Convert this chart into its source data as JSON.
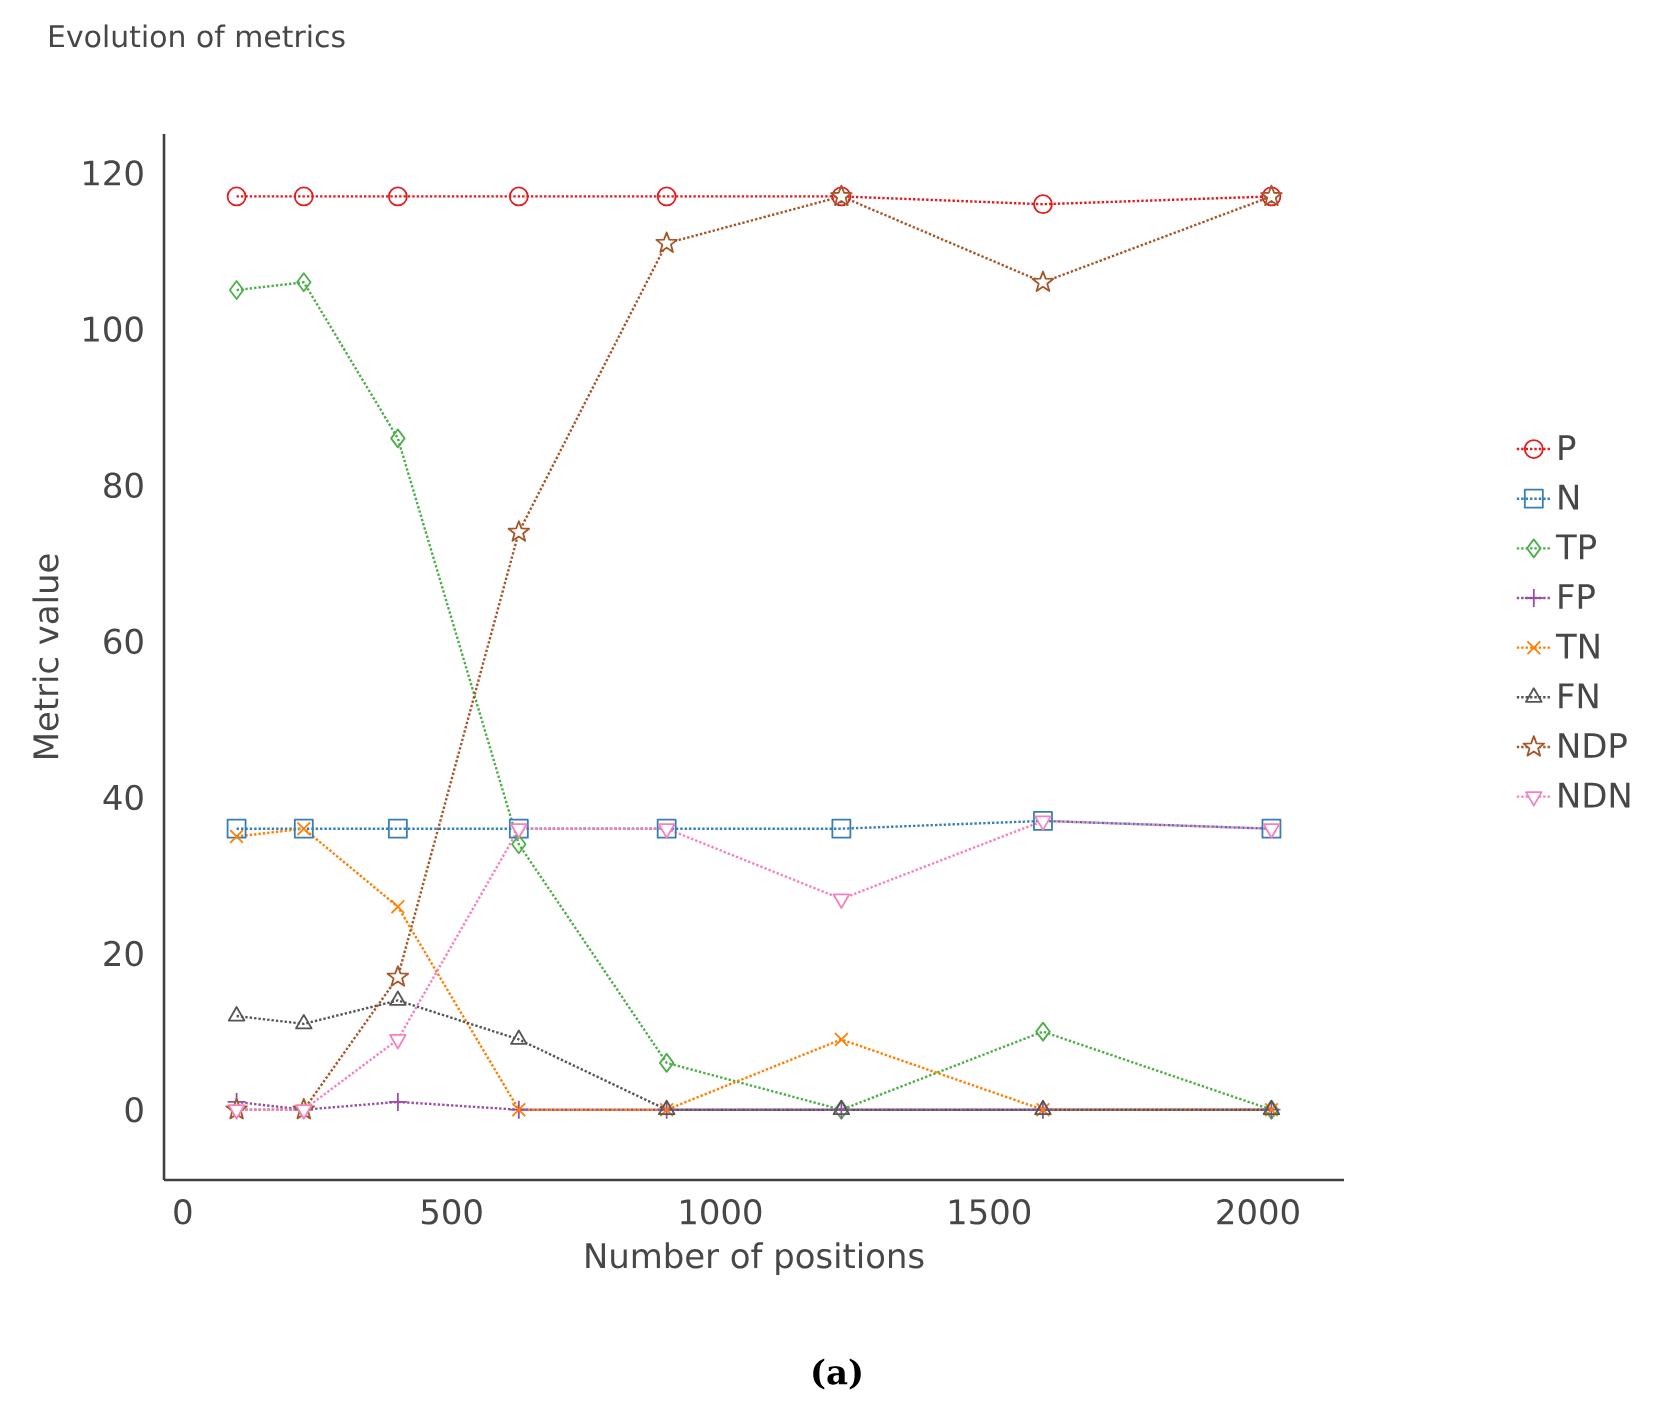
{
  "chart_data": {
    "type": "line",
    "title": "Evolution of metrics",
    "xlabel": "Number of positions",
    "ylabel": "Metric value",
    "annotations": [
      "**(a)**"
    ],
    "x": [
      100,
      225,
      400,
      625,
      900,
      1225,
      1600,
      2025
    ],
    "xlim": [
      -35,
      2160
    ],
    "xticks": [
      0,
      500,
      1000,
      1500,
      2000
    ],
    "ylim": [
      -9,
      125
    ],
    "yticks": [
      0,
      20,
      40,
      60,
      80,
      100,
      120
    ],
    "grid": false,
    "legend": "right",
    "line_style": "dotted",
    "series": [
      {
        "name": "P",
        "color": "#e41a1c",
        "marker": "circle",
        "values": [
          117,
          117,
          117,
          117,
          117,
          117,
          116,
          117
        ]
      },
      {
        "name": "N",
        "color": "#377eb8",
        "marker": "square",
        "values": [
          36,
          36,
          36,
          36,
          36,
          36,
          37,
          36
        ]
      },
      {
        "name": "TP",
        "color": "#4daf4a",
        "marker": "diamond",
        "values": [
          105,
          106,
          86,
          34,
          6,
          0,
          10,
          0
        ]
      },
      {
        "name": "FP",
        "color": "#984ea3",
        "marker": "plus",
        "values": [
          1,
          0,
          1,
          0,
          0,
          0,
          0,
          0
        ]
      },
      {
        "name": "TN",
        "color": "#ff7f00",
        "marker": "cross",
        "values": [
          35,
          36,
          26,
          0,
          0,
          9,
          0,
          0
        ]
      },
      {
        "name": "FN",
        "color": "#555555",
        "marker": "triangle",
        "values": [
          12,
          11,
          14,
          9,
          0,
          0,
          0,
          0
        ]
      },
      {
        "name": "NDP",
        "color": "#a65628",
        "marker": "star",
        "values": [
          0,
          0,
          17,
          74,
          111,
          117,
          106,
          117
        ]
      },
      {
        "name": "NDN",
        "color": "#f781bf",
        "marker": "triangle-down",
        "values": [
          0,
          0,
          9,
          36,
          36,
          27,
          37,
          36
        ]
      }
    ]
  }
}
